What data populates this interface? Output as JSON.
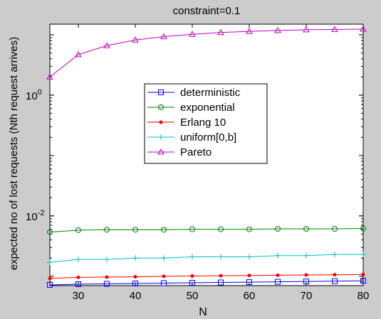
{
  "chart_data": {
    "type": "line",
    "title": "constraint=0.1",
    "xlabel": "N",
    "ylabel": "expected no of lost requests (Nth request arrives)",
    "xlim": [
      25,
      80
    ],
    "ylim": [
      0.0007,
      15
    ],
    "yscale": "log",
    "grid": false,
    "legend_position": "center-left",
    "x_ticks": [
      30,
      40,
      50,
      60,
      70,
      80
    ],
    "y_ticks": [
      {
        "value": 0.01,
        "base": "10",
        "exp": "-2"
      },
      {
        "value": 1,
        "base": "10",
        "exp": "0"
      }
    ],
    "x": [
      25,
      30,
      35,
      40,
      45,
      50,
      55,
      60,
      65,
      70,
      75,
      80
    ],
    "series": [
      {
        "name": "deterministic",
        "color": "#0000ff",
        "marker": "square",
        "values": [
          0.00072,
          0.00074,
          0.00075,
          0.00076,
          0.00077,
          0.00078,
          0.00079,
          0.0008,
          0.00081,
          0.00082,
          0.00083,
          0.00084
        ]
      },
      {
        "name": "exponential",
        "color": "#008000",
        "marker": "circle",
        "values": [
          0.0054,
          0.0058,
          0.0059,
          0.0059,
          0.0059,
          0.006,
          0.006,
          0.006,
          0.0061,
          0.0061,
          0.0061,
          0.0062
        ]
      },
      {
        "name": "Erlang 10",
        "color": "#ff0000",
        "marker": "dot",
        "values": [
          0.00092,
          0.00096,
          0.00097,
          0.00098,
          0.001,
          0.00101,
          0.00102,
          0.00103,
          0.00104,
          0.00105,
          0.00106,
          0.00107
        ]
      },
      {
        "name": "uniform[0,b]",
        "color": "#00bfbf",
        "marker": "plus",
        "values": [
          0.0017,
          0.0019,
          0.0019,
          0.002,
          0.002,
          0.0021,
          0.0021,
          0.0021,
          0.0022,
          0.0022,
          0.0023,
          0.0023
        ]
      },
      {
        "name": "Pareto",
        "color": "#bf00bf",
        "marker": "triangle",
        "values": [
          2.0,
          4.7,
          6.6,
          8.2,
          9.3,
          10.2,
          10.9,
          11.4,
          11.8,
          12.1,
          12.3,
          12.4
        ]
      }
    ]
  }
}
